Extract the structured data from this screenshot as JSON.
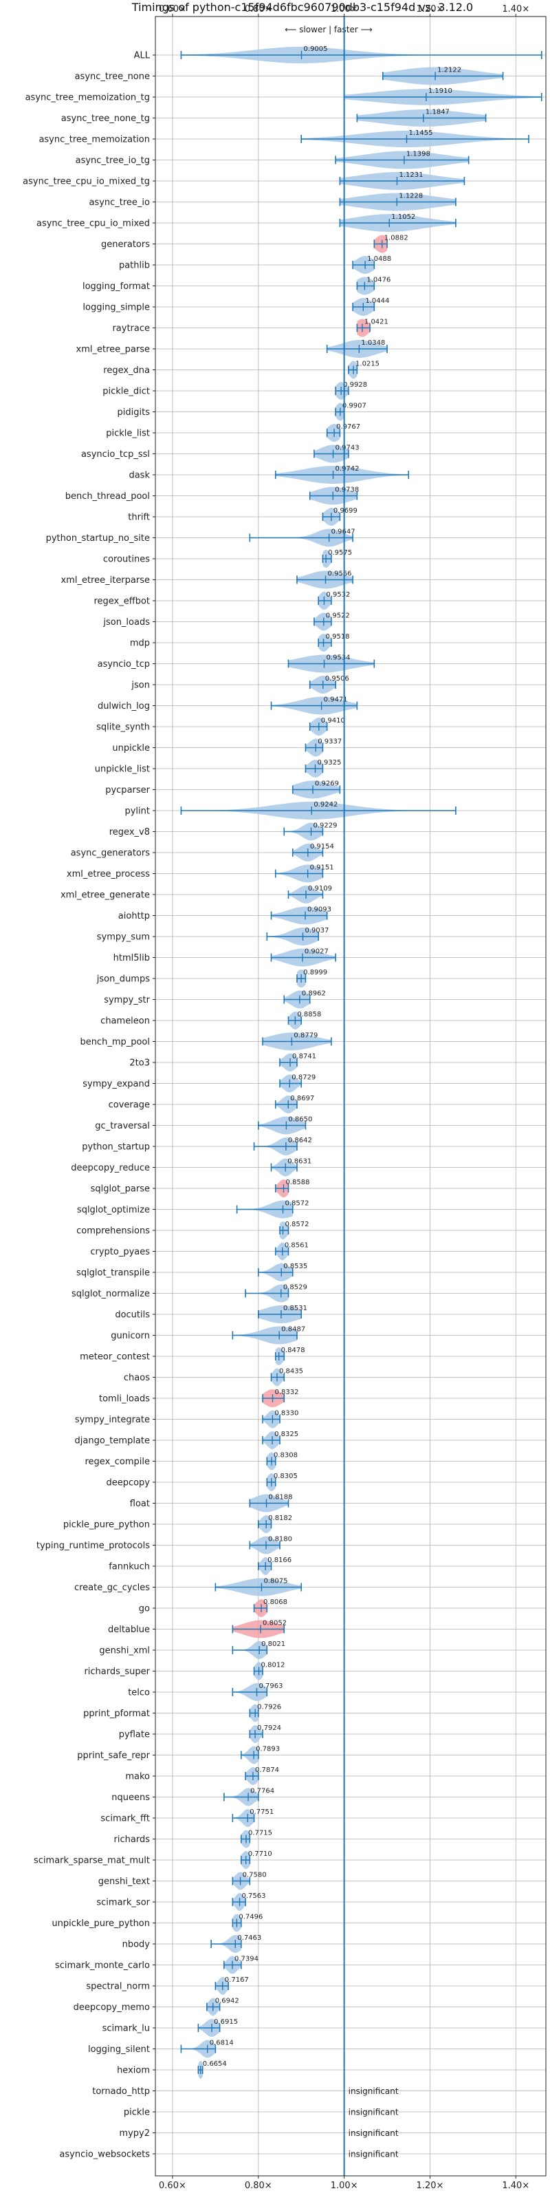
{
  "chart_data": {
    "type": "violin",
    "title": "Timings of python-c15f94d6fbc960790db3-c15f94d vs. 3.12.0",
    "direction_label": "⟵ slower | faster ⟶",
    "xlim": [
      0.56,
      1.47
    ],
    "xticks": [
      0.6,
      0.8,
      1.0,
      1.2,
      1.4
    ],
    "xtick_labels": [
      "0.60×",
      "0.80×",
      "1.00×",
      "1.20×",
      "1.40×"
    ],
    "reference_line": 1.0,
    "colors": {
      "violin": "#a8c8e8",
      "violin_red": "#f4a0a8",
      "whisker": "#1f77b4",
      "grid": "#b0b0b0",
      "refline": "#1f77b4"
    },
    "insignificant_label": "insignificant",
    "benchmarks": [
      {
        "name": "ALL",
        "value": 0.9005,
        "min": 0.62,
        "max": 1.46,
        "spread": 0.11,
        "label": "0.9005"
      },
      {
        "name": "async_tree_none",
        "value": 1.2122,
        "min": 1.09,
        "max": 1.37,
        "spread": 0.09,
        "label": "1.2122"
      },
      {
        "name": "async_tree_memoization_tg",
        "value": 1.191,
        "min": 1.0,
        "max": 1.46,
        "spread": 0.12,
        "label": "1.1910"
      },
      {
        "name": "async_tree_none_tg",
        "value": 1.1847,
        "min": 1.03,
        "max": 1.33,
        "spread": 0.1,
        "label": "1.1847"
      },
      {
        "name": "async_tree_memoization",
        "value": 1.1455,
        "min": 0.9,
        "max": 1.43,
        "spread": 0.11,
        "label": "1.1455"
      },
      {
        "name": "async_tree_io_tg",
        "value": 1.1398,
        "min": 0.98,
        "max": 1.29,
        "spread": 0.09,
        "label": "1.1398"
      },
      {
        "name": "async_tree_cpu_io_mixed_tg",
        "value": 1.1231,
        "min": 0.99,
        "max": 1.28,
        "spread": 0.09,
        "label": "1.1231"
      },
      {
        "name": "async_tree_io",
        "value": 1.1228,
        "min": 0.99,
        "max": 1.26,
        "spread": 0.09,
        "label": "1.1228"
      },
      {
        "name": "async_tree_cpu_io_mixed",
        "value": 1.1052,
        "min": 0.99,
        "max": 1.26,
        "spread": 0.08,
        "label": "1.1052"
      },
      {
        "name": "generators",
        "value": 1.0882,
        "min": 1.07,
        "max": 1.1,
        "spread": 0.015,
        "label": "1.0882",
        "red": true
      },
      {
        "name": "pathlib",
        "value": 1.0488,
        "min": 1.02,
        "max": 1.07,
        "spread": 0.02,
        "label": "1.0488"
      },
      {
        "name": "logging_format",
        "value": 1.0476,
        "min": 1.03,
        "max": 1.07,
        "spread": 0.02,
        "label": "1.0476"
      },
      {
        "name": "logging_simple",
        "value": 1.0444,
        "min": 1.02,
        "max": 1.07,
        "spread": 0.02,
        "label": "1.0444"
      },
      {
        "name": "raytrace",
        "value": 1.0421,
        "min": 1.03,
        "max": 1.06,
        "spread": 0.015,
        "label": "1.0421",
        "red": true
      },
      {
        "name": "xml_etree_parse",
        "value": 1.0348,
        "min": 0.96,
        "max": 1.1,
        "spread": 0.04,
        "label": "1.0348"
      },
      {
        "name": "regex_dna",
        "value": 1.0215,
        "min": 1.01,
        "max": 1.03,
        "spread": 0.01,
        "label": "1.0215"
      },
      {
        "name": "pickle_dict",
        "value": 0.9928,
        "min": 0.98,
        "max": 1.01,
        "spread": 0.012,
        "label": "0.9928"
      },
      {
        "name": "pidigits",
        "value": 0.9907,
        "min": 0.98,
        "max": 1.0,
        "spread": 0.01,
        "label": "0.9907"
      },
      {
        "name": "pickle_list",
        "value": 0.9767,
        "min": 0.96,
        "max": 0.99,
        "spread": 0.015,
        "label": "0.9767"
      },
      {
        "name": "asyncio_tcp_ssl",
        "value": 0.9743,
        "min": 0.93,
        "max": 1.01,
        "spread": 0.03,
        "label": "0.9743"
      },
      {
        "name": "dask",
        "value": 0.9742,
        "min": 0.84,
        "max": 1.15,
        "spread": 0.07,
        "label": "0.9742"
      },
      {
        "name": "bench_thread_pool",
        "value": 0.9738,
        "min": 0.92,
        "max": 1.03,
        "spread": 0.04,
        "label": "0.9738"
      },
      {
        "name": "thrift",
        "value": 0.9699,
        "min": 0.95,
        "max": 0.99,
        "spread": 0.015,
        "label": "0.9699"
      },
      {
        "name": "python_startup_no_site",
        "value": 0.9647,
        "min": 0.78,
        "max": 1.02,
        "spread": 0.03,
        "label": "0.9647"
      },
      {
        "name": "coroutines",
        "value": 0.9575,
        "min": 0.95,
        "max": 0.97,
        "spread": 0.01,
        "label": "0.9575"
      },
      {
        "name": "xml_etree_iterparse",
        "value": 0.9566,
        "min": 0.89,
        "max": 1.02,
        "spread": 0.04,
        "label": "0.9566"
      },
      {
        "name": "regex_effbot",
        "value": 0.9532,
        "min": 0.94,
        "max": 0.97,
        "spread": 0.012,
        "label": "0.9532"
      },
      {
        "name": "json_loads",
        "value": 0.9522,
        "min": 0.93,
        "max": 0.97,
        "spread": 0.015,
        "label": "0.9522"
      },
      {
        "name": "mdp",
        "value": 0.9518,
        "min": 0.94,
        "max": 0.97,
        "spread": 0.012,
        "label": "0.9518"
      },
      {
        "name": "asyncio_tcp",
        "value": 0.9534,
        "min": 0.87,
        "max": 1.07,
        "spread": 0.06,
        "label": "0.9534"
      },
      {
        "name": "json",
        "value": 0.9506,
        "min": 0.92,
        "max": 0.98,
        "spread": 0.02,
        "label": "0.9506"
      },
      {
        "name": "dulwich_log",
        "value": 0.9471,
        "min": 0.83,
        "max": 1.03,
        "spread": 0.05,
        "label": "0.9471"
      },
      {
        "name": "sqlite_synth",
        "value": 0.941,
        "min": 0.92,
        "max": 0.96,
        "spread": 0.015,
        "label": "0.9410"
      },
      {
        "name": "unpickle",
        "value": 0.9337,
        "min": 0.91,
        "max": 0.95,
        "spread": 0.015,
        "label": "0.9337"
      },
      {
        "name": "unpickle_list",
        "value": 0.9325,
        "min": 0.91,
        "max": 0.95,
        "spread": 0.015,
        "label": "0.9325"
      },
      {
        "name": "pycparser",
        "value": 0.9269,
        "min": 0.88,
        "max": 0.99,
        "spread": 0.04,
        "label": "0.9269"
      },
      {
        "name": "pylint",
        "value": 0.9242,
        "min": 0.62,
        "max": 1.26,
        "spread": 0.09,
        "label": "0.9242"
      },
      {
        "name": "regex_v8",
        "value": 0.9229,
        "min": 0.86,
        "max": 0.95,
        "spread": 0.02,
        "label": "0.9229"
      },
      {
        "name": "async_generators",
        "value": 0.9154,
        "min": 0.88,
        "max": 0.95,
        "spread": 0.02,
        "label": "0.9154"
      },
      {
        "name": "xml_etree_process",
        "value": 0.9151,
        "min": 0.84,
        "max": 0.95,
        "spread": 0.03,
        "label": "0.9151"
      },
      {
        "name": "xml_etree_generate",
        "value": 0.9109,
        "min": 0.87,
        "max": 0.95,
        "spread": 0.02,
        "label": "0.9109"
      },
      {
        "name": "aiohttp",
        "value": 0.9093,
        "min": 0.83,
        "max": 0.96,
        "spread": 0.04,
        "label": "0.9093"
      },
      {
        "name": "sympy_sum",
        "value": 0.9037,
        "min": 0.82,
        "max": 0.94,
        "spread": 0.03,
        "label": "0.9037"
      },
      {
        "name": "html5lib",
        "value": 0.9027,
        "min": 0.83,
        "max": 0.98,
        "spread": 0.04,
        "label": "0.9027"
      },
      {
        "name": "json_dumps",
        "value": 0.8999,
        "min": 0.89,
        "max": 0.91,
        "spread": 0.012,
        "label": "0.8999"
      },
      {
        "name": "sympy_str",
        "value": 0.8962,
        "min": 0.86,
        "max": 0.92,
        "spread": 0.02,
        "label": "0.8962"
      },
      {
        "name": "chameleon",
        "value": 0.8858,
        "min": 0.87,
        "max": 0.9,
        "spread": 0.012,
        "label": "0.8858"
      },
      {
        "name": "bench_mp_pool",
        "value": 0.8779,
        "min": 0.81,
        "max": 0.97,
        "spread": 0.05,
        "label": "0.8779"
      },
      {
        "name": "2to3",
        "value": 0.8741,
        "min": 0.85,
        "max": 0.89,
        "spread": 0.015,
        "label": "0.8741"
      },
      {
        "name": "sympy_expand",
        "value": 0.8729,
        "min": 0.85,
        "max": 0.9,
        "spread": 0.015,
        "label": "0.8729"
      },
      {
        "name": "coverage",
        "value": 0.8697,
        "min": 0.84,
        "max": 0.89,
        "spread": 0.015,
        "label": "0.8697"
      },
      {
        "name": "gc_traversal",
        "value": 0.865,
        "min": 0.8,
        "max": 0.91,
        "spread": 0.03,
        "label": "0.8650"
      },
      {
        "name": "python_startup",
        "value": 0.8642,
        "min": 0.79,
        "max": 0.89,
        "spread": 0.02,
        "label": "0.8642"
      },
      {
        "name": "deepcopy_reduce",
        "value": 0.8631,
        "min": 0.83,
        "max": 0.89,
        "spread": 0.015,
        "label": "0.8631"
      },
      {
        "name": "sqlglot_parse",
        "value": 0.8588,
        "min": 0.84,
        "max": 0.87,
        "spread": 0.012,
        "label": "0.8588",
        "red": true
      },
      {
        "name": "sqlglot_optimize",
        "value": 0.8572,
        "min": 0.75,
        "max": 0.88,
        "spread": 0.03,
        "label": "0.8572"
      },
      {
        "name": "comprehensions",
        "value": 0.8572,
        "min": 0.85,
        "max": 0.87,
        "spread": 0.01,
        "label": "0.8572"
      },
      {
        "name": "crypto_pyaes",
        "value": 0.8561,
        "min": 0.84,
        "max": 0.87,
        "spread": 0.01,
        "label": "0.8561"
      },
      {
        "name": "sqlglot_transpile",
        "value": 0.8535,
        "min": 0.8,
        "max": 0.88,
        "spread": 0.02,
        "label": "0.8535"
      },
      {
        "name": "sqlglot_normalize",
        "value": 0.8529,
        "min": 0.77,
        "max": 0.87,
        "spread": 0.02,
        "label": "0.8529"
      },
      {
        "name": "docutils",
        "value": 0.8531,
        "min": 0.8,
        "max": 0.9,
        "spread": 0.04,
        "label": "0.8531"
      },
      {
        "name": "gunicorn",
        "value": 0.8487,
        "min": 0.74,
        "max": 0.89,
        "spread": 0.04,
        "label": "0.8487"
      },
      {
        "name": "meteor_contest",
        "value": 0.8478,
        "min": 0.84,
        "max": 0.86,
        "spread": 0.01,
        "label": "0.8478"
      },
      {
        "name": "chaos",
        "value": 0.8435,
        "min": 0.83,
        "max": 0.86,
        "spread": 0.01,
        "label": "0.8435"
      },
      {
        "name": "tomli_loads",
        "value": 0.8332,
        "min": 0.81,
        "max": 0.86,
        "spread": 0.02,
        "label": "0.8332",
        "red": true
      },
      {
        "name": "sympy_integrate",
        "value": 0.833,
        "min": 0.81,
        "max": 0.85,
        "spread": 0.012,
        "label": "0.8330"
      },
      {
        "name": "django_template",
        "value": 0.8325,
        "min": 0.81,
        "max": 0.85,
        "spread": 0.012,
        "label": "0.8325"
      },
      {
        "name": "regex_compile",
        "value": 0.8308,
        "min": 0.82,
        "max": 0.84,
        "spread": 0.01,
        "label": "0.8308"
      },
      {
        "name": "deepcopy",
        "value": 0.8305,
        "min": 0.82,
        "max": 0.84,
        "spread": 0.01,
        "label": "0.8305"
      },
      {
        "name": "float",
        "value": 0.8188,
        "min": 0.78,
        "max": 0.87,
        "spread": 0.03,
        "label": "0.8188"
      },
      {
        "name": "pickle_pure_python",
        "value": 0.8182,
        "min": 0.8,
        "max": 0.83,
        "spread": 0.012,
        "label": "0.8182"
      },
      {
        "name": "typing_runtime_protocols",
        "value": 0.818,
        "min": 0.78,
        "max": 0.85,
        "spread": 0.02,
        "label": "0.8180"
      },
      {
        "name": "fannkuch",
        "value": 0.8166,
        "min": 0.8,
        "max": 0.83,
        "spread": 0.01,
        "label": "0.8166"
      },
      {
        "name": "create_gc_cycles",
        "value": 0.8075,
        "min": 0.7,
        "max": 0.9,
        "spread": 0.05,
        "label": "0.8075"
      },
      {
        "name": "go",
        "value": 0.8068,
        "min": 0.79,
        "max": 0.82,
        "spread": 0.012,
        "label": "0.8068",
        "red": true
      },
      {
        "name": "deltablue",
        "value": 0.8052,
        "min": 0.74,
        "max": 0.86,
        "spread": 0.04,
        "label": "0.8052",
        "red": true
      },
      {
        "name": "genshi_xml",
        "value": 0.8021,
        "min": 0.74,
        "max": 0.82,
        "spread": 0.015,
        "label": "0.8021"
      },
      {
        "name": "richards_super",
        "value": 0.8012,
        "min": 0.79,
        "max": 0.81,
        "spread": 0.01,
        "label": "0.8012"
      },
      {
        "name": "telco",
        "value": 0.7963,
        "min": 0.74,
        "max": 0.82,
        "spread": 0.02,
        "label": "0.7963"
      },
      {
        "name": "pprint_pformat",
        "value": 0.7926,
        "min": 0.78,
        "max": 0.8,
        "spread": 0.01,
        "label": "0.7926"
      },
      {
        "name": "pyflate",
        "value": 0.7924,
        "min": 0.78,
        "max": 0.81,
        "spread": 0.01,
        "label": "0.7924"
      },
      {
        "name": "pprint_safe_repr",
        "value": 0.7893,
        "min": 0.76,
        "max": 0.8,
        "spread": 0.012,
        "label": "0.7893"
      },
      {
        "name": "mako",
        "value": 0.7874,
        "min": 0.77,
        "max": 0.8,
        "spread": 0.012,
        "label": "0.7874"
      },
      {
        "name": "nqueens",
        "value": 0.7764,
        "min": 0.72,
        "max": 0.8,
        "spread": 0.015,
        "label": "0.7764"
      },
      {
        "name": "scimark_fft",
        "value": 0.7751,
        "min": 0.74,
        "max": 0.79,
        "spread": 0.012,
        "label": "0.7751"
      },
      {
        "name": "richards",
        "value": 0.7715,
        "min": 0.76,
        "max": 0.78,
        "spread": 0.01,
        "label": "0.7715"
      },
      {
        "name": "scimark_sparse_mat_mult",
        "value": 0.771,
        "min": 0.76,
        "max": 0.78,
        "spread": 0.01,
        "label": "0.7710"
      },
      {
        "name": "genshi_text",
        "value": 0.758,
        "min": 0.74,
        "max": 0.78,
        "spread": 0.012,
        "label": "0.7580"
      },
      {
        "name": "scimark_sor",
        "value": 0.7563,
        "min": 0.74,
        "max": 0.77,
        "spread": 0.01,
        "label": "0.7563"
      },
      {
        "name": "unpickle_pure_python",
        "value": 0.7496,
        "min": 0.74,
        "max": 0.76,
        "spread": 0.01,
        "label": "0.7496"
      },
      {
        "name": "nbody",
        "value": 0.7463,
        "min": 0.69,
        "max": 0.76,
        "spread": 0.015,
        "label": "0.7463"
      },
      {
        "name": "scimark_monte_carlo",
        "value": 0.7394,
        "min": 0.72,
        "max": 0.76,
        "spread": 0.012,
        "label": "0.7394"
      },
      {
        "name": "spectral_norm",
        "value": 0.7167,
        "min": 0.7,
        "max": 0.73,
        "spread": 0.01,
        "label": "0.7167"
      },
      {
        "name": "deepcopy_memo",
        "value": 0.6942,
        "min": 0.68,
        "max": 0.71,
        "spread": 0.01,
        "label": "0.6942"
      },
      {
        "name": "scimark_lu",
        "value": 0.6915,
        "min": 0.66,
        "max": 0.71,
        "spread": 0.015,
        "label": "0.6915"
      },
      {
        "name": "logging_silent",
        "value": 0.6814,
        "min": 0.62,
        "max": 0.7,
        "spread": 0.015,
        "label": "0.6814"
      },
      {
        "name": "hexiom",
        "value": 0.6654,
        "min": 0.66,
        "max": 0.67,
        "spread": 0.006,
        "label": "0.6654"
      },
      {
        "name": "tornado_http",
        "insignificant": true
      },
      {
        "name": "pickle",
        "insignificant": true
      },
      {
        "name": "mypy2",
        "insignificant": true
      },
      {
        "name": "asyncio_websockets",
        "insignificant": true
      }
    ]
  }
}
